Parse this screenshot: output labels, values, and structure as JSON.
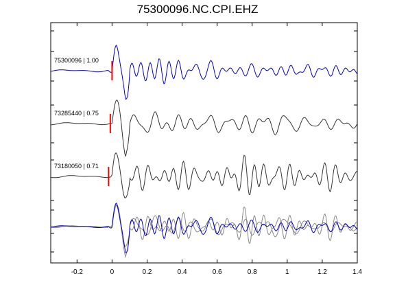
{
  "chart_data": {
    "type": "line",
    "title": "75300096.NC.CPI.EHZ",
    "xlim": [
      -0.35,
      1.4
    ],
    "xticks": [
      "-0.2",
      "0",
      "0.2",
      "0.4",
      "0.6",
      "0.8",
      "1",
      "1.2",
      "1.4"
    ],
    "xtick_values": [
      -0.2,
      0,
      0.2,
      0.4,
      0.6,
      0.8,
      1.0,
      1.2,
      1.4
    ],
    "grid": false,
    "pick_color": "#ff0000",
    "series": [
      {
        "label": "75300096 | 1.00",
        "color": "#0000cc",
        "pick_time": 0.0,
        "seed": 7,
        "row": 0
      },
      {
        "label": "73285440 | 0.75",
        "color": "#333333",
        "pick_time": -0.01,
        "seed": 19,
        "row": 1
      },
      {
        "label": "73180050 | 0.71",
        "color": "#333333",
        "pick_time": -0.02,
        "seed": 31,
        "row": 2
      }
    ],
    "overlay": {
      "row": 3,
      "traces": [
        {
          "color": "#888888",
          "seed": 19
        },
        {
          "color": "#888888",
          "seed": 31
        },
        {
          "color": "#0000cc",
          "seed": 7
        }
      ]
    }
  }
}
